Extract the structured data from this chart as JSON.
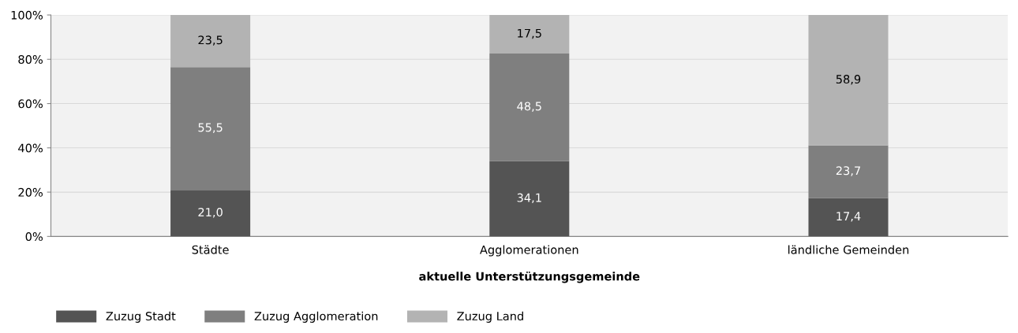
{
  "chart_data": {
    "type": "bar",
    "stacked": true,
    "xlabel": "aktuelle Unterstützungsgemeinde",
    "categories": [
      "Städte",
      "Agglomerationen",
      "ländliche Gemeinden"
    ],
    "series": [
      {
        "name": "Zuzug Stadt",
        "color": "#545454",
        "values": [
          21.0,
          34.1,
          17.4
        ],
        "value_labels": [
          "21,0",
          "34,1",
          "17,4"
        ]
      },
      {
        "name": "Zuzug Agglomeration",
        "color": "#7f7f7f",
        "values": [
          55.5,
          48.5,
          23.7
        ],
        "value_labels": [
          "55,5",
          "48,5",
          "23,7"
        ]
      },
      {
        "name": "Zuzug Land",
        "color": "#b3b3b3",
        "values": [
          23.5,
          17.5,
          58.9
        ],
        "value_labels": [
          "23,5",
          "17,5",
          "58,9"
        ]
      }
    ],
    "ylim": [
      0,
      100
    ],
    "yticks": [
      {
        "value": 0,
        "label": "0%"
      },
      {
        "value": 20,
        "label": "20%"
      },
      {
        "value": 40,
        "label": "40%"
      },
      {
        "value": 60,
        "label": "60%"
      },
      {
        "value": 80,
        "label": "80%"
      },
      {
        "value": 100,
        "label": "100%"
      }
    ],
    "grid": "y",
    "legend": "bottom left"
  }
}
